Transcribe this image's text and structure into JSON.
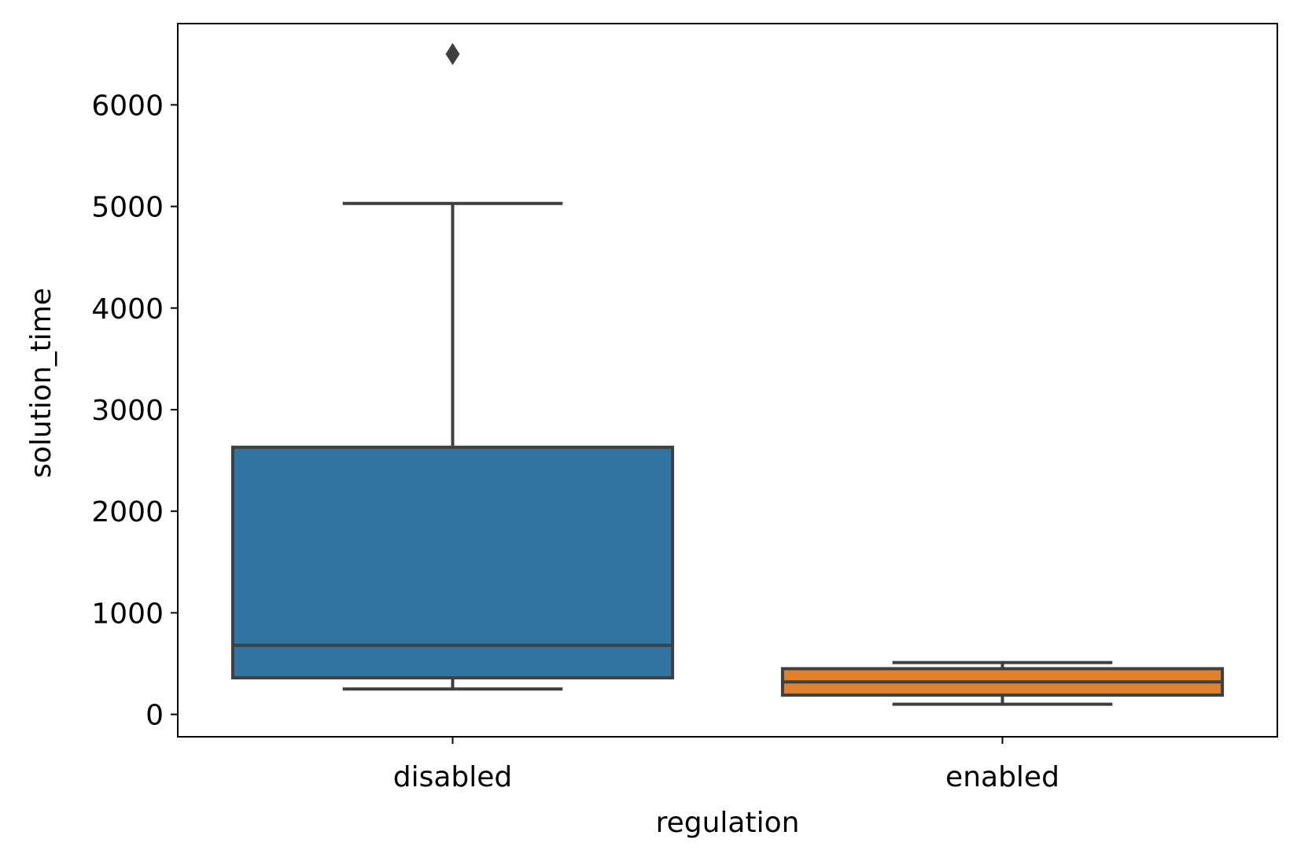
{
  "chart_data": {
    "type": "box",
    "title": "",
    "xlabel": "regulation",
    "ylabel": "solution_time",
    "ylim": [
      -220,
      6800
    ],
    "yticks": [
      0,
      1000,
      2000,
      3000,
      4000,
      5000,
      6000
    ],
    "ytick_labels": [
      "0",
      "1000",
      "2000",
      "3000",
      "4000",
      "5000",
      "6000"
    ],
    "grid": false,
    "legend": "none",
    "categories": [
      "disabled",
      "enabled"
    ],
    "boxes": [
      {
        "category": "disabled",
        "color": "#3274a1",
        "whisker_low": 250,
        "q1": 360,
        "median": 680,
        "q3": 2630,
        "whisker_high": 5030,
        "outliers": [
          6500
        ]
      },
      {
        "category": "enabled",
        "color": "#e1812c",
        "whisker_low": 100,
        "q1": 190,
        "median": 320,
        "q3": 450,
        "whisker_high": 510,
        "outliers": []
      }
    ],
    "line_color": "#3f3f3f"
  }
}
